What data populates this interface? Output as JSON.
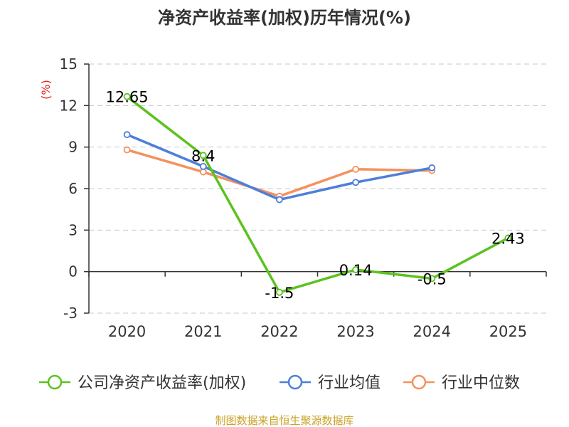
{
  "chart_data": {
    "type": "line",
    "title": "净资产收益率(加权)历年情况(%)",
    "ylabel": "(%)",
    "categories": [
      "2020",
      "2021",
      "2022",
      "2023",
      "2024",
      "2025"
    ],
    "ylim": [
      -3,
      15
    ],
    "yticks": [
      "15",
      "12",
      "9",
      "6",
      "3",
      "0",
      "-3"
    ],
    "grid": true,
    "legend_position": "bottom",
    "series": [
      {
        "name": "公司净资产收益率(加权)",
        "color": "#5cc21f",
        "values": [
          12.65,
          8.4,
          -1.5,
          0.14,
          -0.5,
          2.43
        ],
        "labels": [
          "12.65",
          "8.4",
          "-1.5",
          "0.14",
          "-0.5",
          "2.43"
        ]
      },
      {
        "name": "行业均值",
        "color": "#4e7fd8",
        "values": [
          9.9,
          7.6,
          5.2,
          6.45,
          7.5,
          null
        ]
      },
      {
        "name": "行业中位数",
        "color": "#f5915e",
        "values": [
          8.8,
          7.2,
          5.45,
          7.4,
          7.3,
          null
        ]
      }
    ]
  },
  "footer": {
    "source": "制图数据来自恒生聚源数据库"
  }
}
